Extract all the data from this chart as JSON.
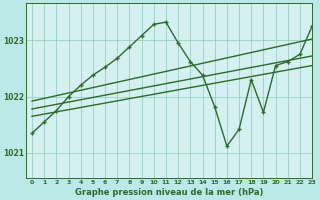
{
  "title": "Graphe pression niveau de la mer (hPa)",
  "bg_color": "#bde8e8",
  "plot_bg_color": "#d4f0f0",
  "grid_color": "#90c8b8",
  "line_color": "#2d6a2d",
  "xlim": [
    -0.5,
    23
  ],
  "ylim": [
    1020.55,
    1023.65
  ],
  "yticks": [
    1021,
    1022,
    1023
  ],
  "xticks": [
    0,
    1,
    2,
    3,
    4,
    5,
    6,
    7,
    8,
    9,
    10,
    11,
    12,
    13,
    14,
    15,
    16,
    17,
    18,
    19,
    20,
    21,
    22,
    23
  ],
  "main_x": [
    0,
    1,
    2,
    3,
    4,
    5,
    6,
    7,
    8,
    9,
    10,
    11,
    12,
    13,
    14,
    15,
    16,
    17,
    18,
    19,
    20,
    21,
    22,
    23
  ],
  "main_y": [
    1021.35,
    1021.55,
    1021.75,
    1022.0,
    1022.2,
    1022.38,
    1022.52,
    1022.68,
    1022.88,
    1023.08,
    1023.28,
    1023.32,
    1022.95,
    1022.62,
    1022.38,
    1021.82,
    1021.12,
    1021.42,
    1022.3,
    1021.72,
    1022.55,
    1022.62,
    1022.75,
    1023.25
  ],
  "trend1_x": [
    0,
    23
  ],
  "trend1_y": [
    1021.92,
    1023.02
  ],
  "trend2_x": [
    0,
    23
  ],
  "trend2_y": [
    1021.78,
    1022.72
  ],
  "trend3_x": [
    0,
    23
  ],
  "trend3_y": [
    1021.65,
    1022.55
  ]
}
